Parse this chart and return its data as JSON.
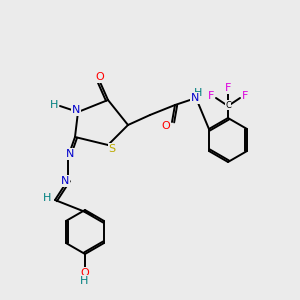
{
  "bg_color": "#ebebeb",
  "atom_colors": {
    "C": "#000000",
    "N": "#0000cc",
    "O": "#ff0000",
    "S": "#bbaa00",
    "H": "#008080",
    "F": "#dd00dd"
  },
  "figsize": [
    3.0,
    3.0
  ],
  "dpi": 100
}
